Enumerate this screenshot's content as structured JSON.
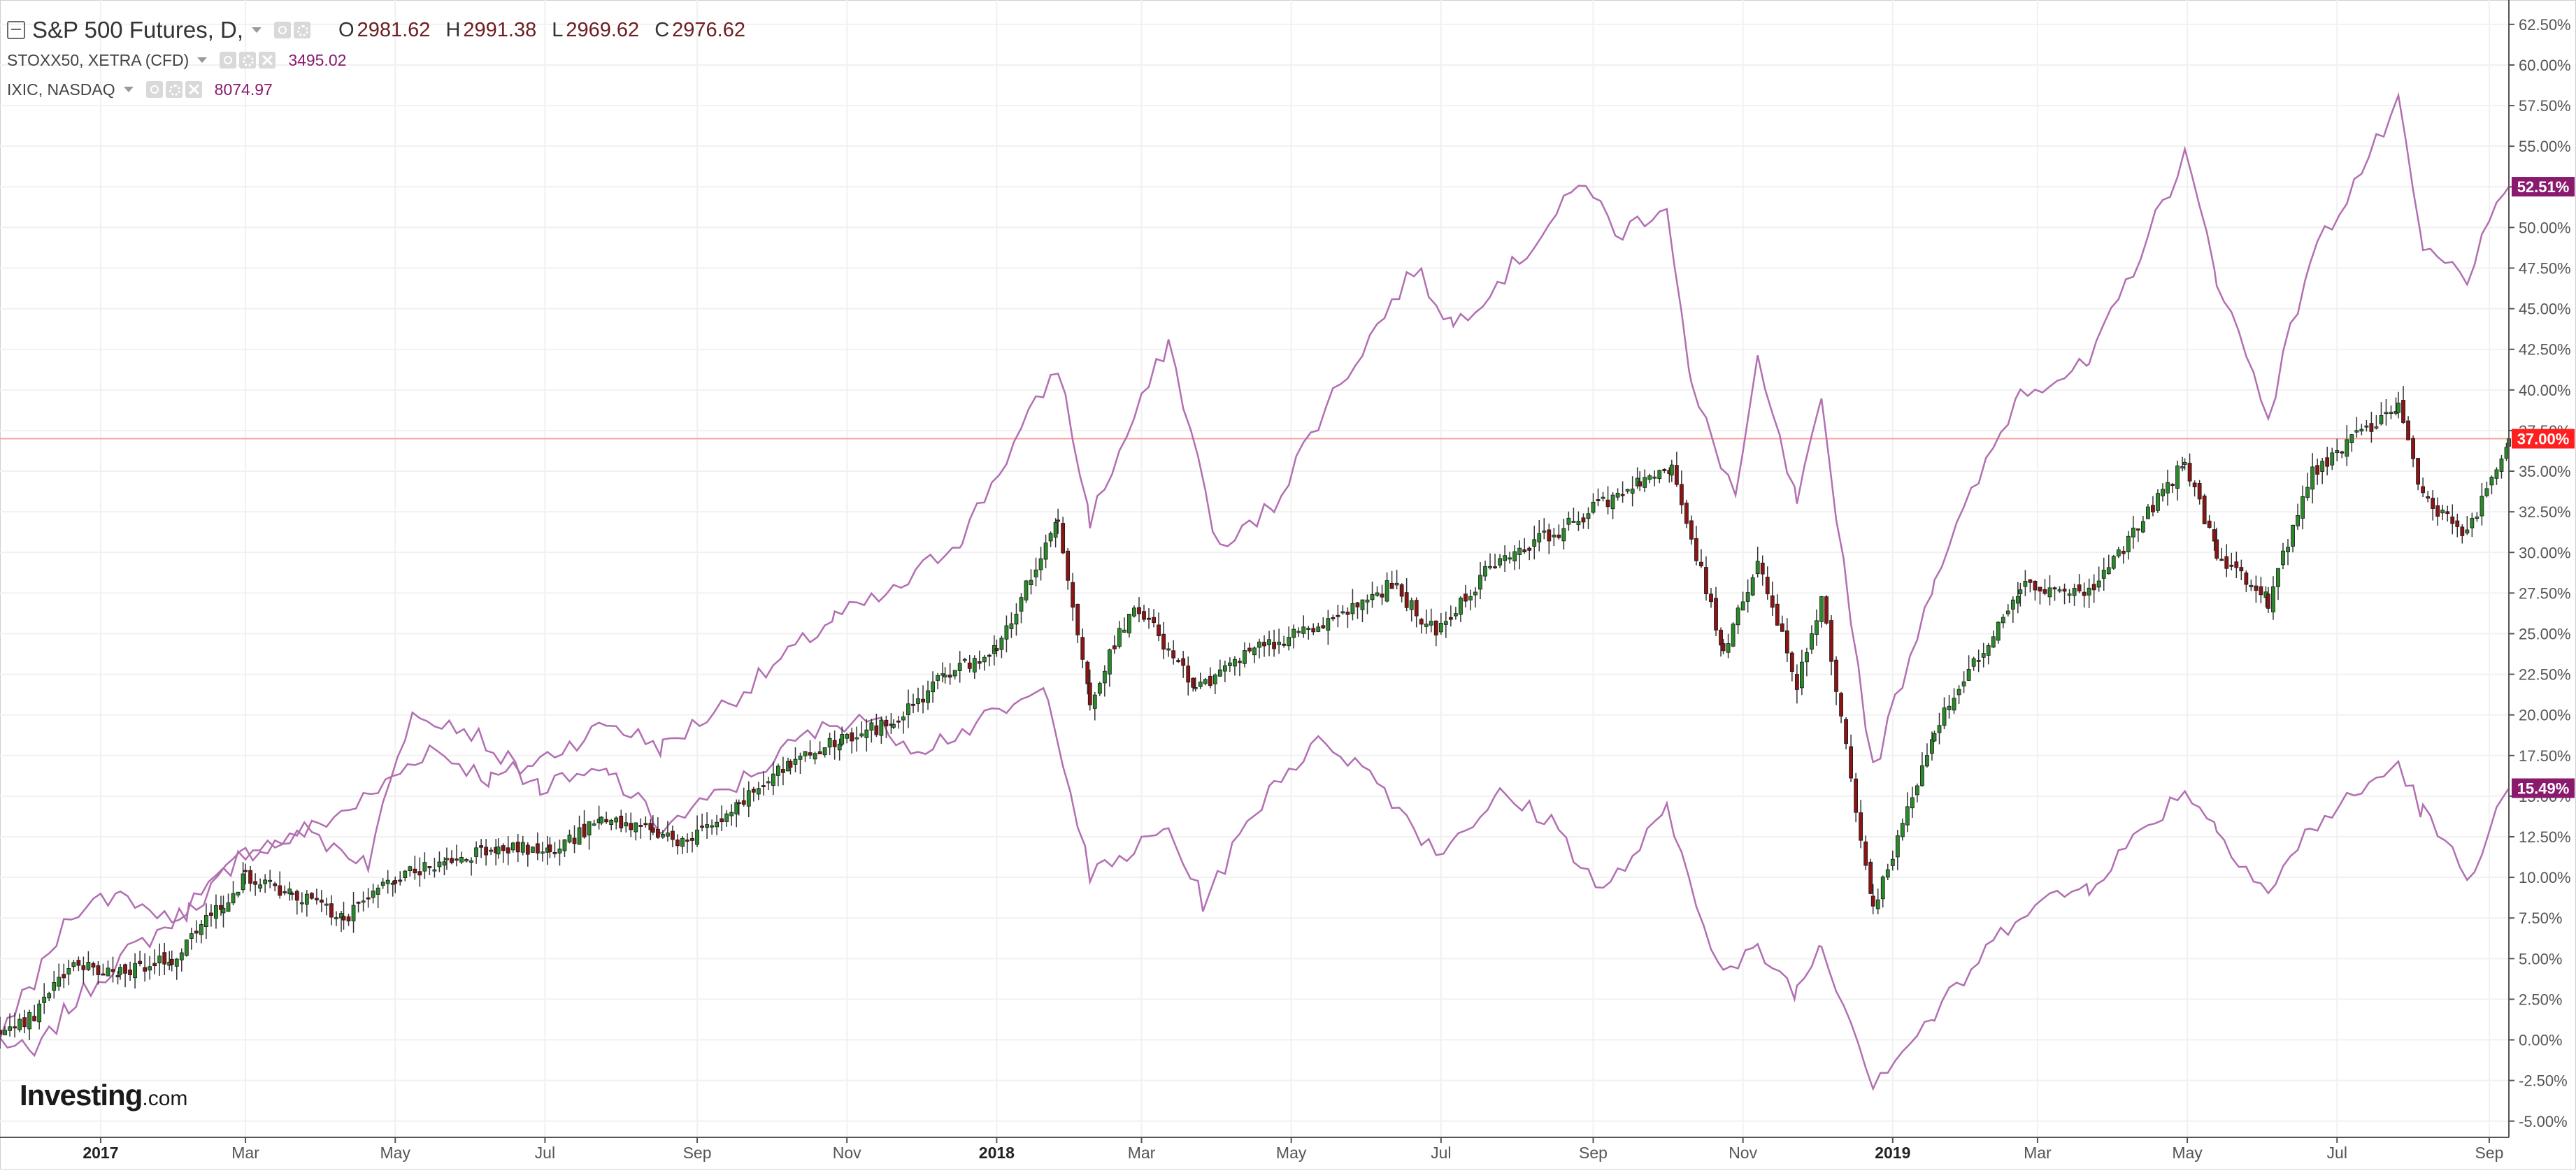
{
  "legend": {
    "main": {
      "title": "S&P 500 Futures, D,",
      "o_label": "O",
      "o": "2981.62",
      "h_label": "H",
      "h": "2991.38",
      "l_label": "L",
      "l": "2969.62",
      "c_label": "C",
      "c": "2976.62"
    },
    "overlays": [
      {
        "name": "STOXX50, XETRA (CFD)",
        "value": "3495.02"
      },
      {
        "name": "IXIC, NASDAQ",
        "value": "8074.97"
      }
    ]
  },
  "logo": {
    "main": "Investing",
    "domain": ".com"
  },
  "colors": {
    "up": "#2a8a2a",
    "down": "#8b1414",
    "overlay": "#b26fb2",
    "axis_text": "#555555",
    "ref_line": "#f2a7a0",
    "grid": "#f1f1f1"
  },
  "chart_data": {
    "type": "line",
    "x_axis": {
      "range": [
        "2016-11-21",
        "2019-09-09"
      ],
      "tick_labels": [
        {
          "date": "2017-01-01",
          "label": "2017",
          "bold": true
        },
        {
          "date": "2017-03-01",
          "label": "Mar"
        },
        {
          "date": "2017-05-01",
          "label": "May"
        },
        {
          "date": "2017-07-01",
          "label": "Jul"
        },
        {
          "date": "2017-09-01",
          "label": "Sep"
        },
        {
          "date": "2017-11-01",
          "label": "Nov"
        },
        {
          "date": "2018-01-01",
          "label": "2018",
          "bold": true
        },
        {
          "date": "2018-03-01",
          "label": "Mar"
        },
        {
          "date": "2018-05-01",
          "label": "May"
        },
        {
          "date": "2018-07-01",
          "label": "Jul"
        },
        {
          "date": "2018-09-01",
          "label": "Sep"
        },
        {
          "date": "2018-11-01",
          "label": "Nov"
        },
        {
          "date": "2019-01-01",
          "label": "2019",
          "bold": true
        },
        {
          "date": "2019-03-01",
          "label": "Mar"
        },
        {
          "date": "2019-05-01",
          "label": "May"
        },
        {
          "date": "2019-07-01",
          "label": "Jul"
        },
        {
          "date": "2019-09-01",
          "label": "Sep"
        }
      ]
    },
    "y_axis": {
      "unit": "%",
      "range": [
        -6.0,
        64.0
      ],
      "ticks": [
        -5.0,
        -2.5,
        0.0,
        2.5,
        5.0,
        7.5,
        10.0,
        12.5,
        15.0,
        17.5,
        20.0,
        22.5,
        25.0,
        27.5,
        30.0,
        32.5,
        35.0,
        37.5,
        40.0,
        42.5,
        45.0,
        47.5,
        50.0,
        52.5,
        55.0,
        57.5,
        60.0,
        62.5
      ],
      "tick_labels": [
        "-5.00%",
        "-2.50%",
        "0.00%",
        "2.50%",
        "5.00%",
        "7.50%",
        "10.00%",
        "12.50%",
        "15.00%",
        "17.50%",
        "20.00%",
        "22.50%",
        "25.00%",
        "27.50%",
        "30.00%",
        "32.50%",
        "35.00%",
        "37.50%",
        "40.00%",
        "42.50%",
        "45.00%",
        "47.50%",
        "50.00%",
        "52.50%",
        "55.00%",
        "57.50%",
        "60.00%",
        "62.50%"
      ]
    },
    "grid": true,
    "reference_line": 37.0,
    "last_value_badges": [
      {
        "series": "S&P 500 Futures",
        "text": "37.00%",
        "value": 37.0,
        "color": "#ff1f1f"
      },
      {
        "series": "IXIC, NASDAQ",
        "text": "52.51%",
        "value": 52.51,
        "color": "#8a1a6d"
      },
      {
        "series": "STOXX50, XETRA (CFD)",
        "text": "15.49%",
        "value": 15.49,
        "color": "#8a1a6d"
      }
    ],
    "series": [
      {
        "name": "S&P 500 Futures",
        "type": "candlestick",
        "points": [
          [
            "2016-11-21",
            0.0
          ],
          [
            "2016-12-05",
            1.5
          ],
          [
            "2016-12-19",
            4.5
          ],
          [
            "2017-01-09",
            4.2
          ],
          [
            "2017-01-30",
            5.0
          ],
          [
            "2017-02-20",
            8.5
          ],
          [
            "2017-03-01",
            10.0
          ],
          [
            "2017-03-20",
            9.0
          ],
          [
            "2017-04-10",
            7.5
          ],
          [
            "2017-05-01",
            10.0
          ],
          [
            "2017-05-22",
            11.0
          ],
          [
            "2017-06-12",
            12.0
          ],
          [
            "2017-07-03",
            11.5
          ],
          [
            "2017-07-24",
            13.5
          ],
          [
            "2017-08-14",
            13.0
          ],
          [
            "2017-08-28",
            12.0
          ],
          [
            "2017-09-18",
            14.5
          ],
          [
            "2017-10-09",
            17.0
          ],
          [
            "2017-10-30",
            18.5
          ],
          [
            "2017-11-20",
            19.5
          ],
          [
            "2017-12-11",
            22.5
          ],
          [
            "2018-01-01",
            24.0
          ],
          [
            "2018-01-26",
            32.0
          ],
          [
            "2018-02-08",
            21.0
          ],
          [
            "2018-02-26",
            27.0
          ],
          [
            "2018-03-23",
            21.5
          ],
          [
            "2018-04-16",
            24.0
          ],
          [
            "2018-05-14",
            25.5
          ],
          [
            "2018-06-11",
            28.0
          ],
          [
            "2018-06-29",
            25.0
          ],
          [
            "2018-07-23",
            29.5
          ],
          [
            "2018-08-20",
            31.5
          ],
          [
            "2018-09-20",
            34.5
          ],
          [
            "2018-10-03",
            35.0
          ],
          [
            "2018-10-24",
            24.0
          ],
          [
            "2018-11-07",
            29.5
          ],
          [
            "2018-11-23",
            22.0
          ],
          [
            "2018-12-03",
            27.0
          ],
          [
            "2018-12-24",
            8.0
          ],
          [
            "2019-01-18",
            19.0
          ],
          [
            "2019-02-22",
            28.0
          ],
          [
            "2019-03-22",
            27.5
          ],
          [
            "2019-04-30",
            35.5
          ],
          [
            "2019-05-13",
            30.0
          ],
          [
            "2019-06-03",
            27.0
          ],
          [
            "2019-06-21",
            35.0
          ],
          [
            "2019-07-26",
            39.0
          ],
          [
            "2019-08-05",
            33.5
          ],
          [
            "2019-08-23",
            31.0
          ],
          [
            "2019-09-09",
            37.0
          ]
        ]
      },
      {
        "name": "IXIC, NASDAQ",
        "type": "line",
        "points": [
          [
            "2016-11-21",
            0.0
          ],
          [
            "2016-12-05",
            -1.0
          ],
          [
            "2016-12-19",
            2.0
          ],
          [
            "2017-01-09",
            5.0
          ],
          [
            "2017-02-06",
            8.0
          ],
          [
            "2017-03-01",
            11.5
          ],
          [
            "2017-03-22",
            12.5
          ],
          [
            "2017-04-21",
            15.0
          ],
          [
            "2017-05-15",
            18.0
          ],
          [
            "2017-06-09",
            16.0
          ],
          [
            "2017-06-26",
            17.0
          ],
          [
            "2017-07-27",
            19.5
          ],
          [
            "2017-08-18",
            18.0
          ],
          [
            "2017-09-20",
            21.5
          ],
          [
            "2017-10-27",
            26.0
          ],
          [
            "2017-11-20",
            27.5
          ],
          [
            "2017-12-18",
            31.0
          ],
          [
            "2018-01-26",
            41.5
          ],
          [
            "2018-02-08",
            32.0
          ],
          [
            "2018-03-12",
            43.0
          ],
          [
            "2018-04-02",
            30.0
          ],
          [
            "2018-04-24",
            33.0
          ],
          [
            "2018-05-15",
            39.0
          ],
          [
            "2018-06-20",
            47.5
          ],
          [
            "2018-07-06",
            44.0
          ],
          [
            "2018-08-02",
            48.0
          ],
          [
            "2018-08-29",
            53.0
          ],
          [
            "2018-09-10",
            49.5
          ],
          [
            "2018-10-01",
            51.5
          ],
          [
            "2018-10-11",
            40.0
          ],
          [
            "2018-10-29",
            33.5
          ],
          [
            "2018-11-07",
            41.5
          ],
          [
            "2018-11-23",
            33.0
          ],
          [
            "2018-12-03",
            39.0
          ],
          [
            "2018-12-24",
            16.5
          ],
          [
            "2019-01-18",
            28.5
          ],
          [
            "2019-02-22",
            40.0
          ],
          [
            "2019-03-22",
            41.5
          ],
          [
            "2019-04-30",
            54.5
          ],
          [
            "2019-05-13",
            47.0
          ],
          [
            "2019-06-03",
            38.5
          ],
          [
            "2019-06-20",
            48.0
          ],
          [
            "2019-07-26",
            57.5
          ],
          [
            "2019-08-05",
            48.5
          ],
          [
            "2019-08-23",
            47.0
          ],
          [
            "2019-09-09",
            52.51
          ]
        ]
      },
      {
        "name": "STOXX50, XETRA (CFD)",
        "type": "line",
        "points": [
          [
            "2016-11-21",
            0.5
          ],
          [
            "2016-12-05",
            3.5
          ],
          [
            "2016-12-20",
            8.0
          ],
          [
            "2017-01-09",
            9.0
          ],
          [
            "2017-01-30",
            7.5
          ],
          [
            "2017-02-20",
            10.0
          ],
          [
            "2017-03-01",
            11.5
          ],
          [
            "2017-03-22",
            13.0
          ],
          [
            "2017-04-20",
            11.0
          ],
          [
            "2017-05-08",
            20.5
          ],
          [
            "2017-06-01",
            19.0
          ],
          [
            "2017-06-29",
            15.5
          ],
          [
            "2017-07-27",
            16.5
          ],
          [
            "2017-08-18",
            13.0
          ],
          [
            "2017-09-20",
            16.0
          ],
          [
            "2017-10-13",
            18.5
          ],
          [
            "2017-11-06",
            20.0
          ],
          [
            "2017-11-30",
            18.0
          ],
          [
            "2017-12-18",
            19.0
          ],
          [
            "2018-01-22",
            21.5
          ],
          [
            "2018-02-08",
            10.0
          ],
          [
            "2018-03-12",
            13.0
          ],
          [
            "2018-03-26",
            8.5
          ],
          [
            "2018-04-24",
            16.0
          ],
          [
            "2018-05-15",
            18.5
          ],
          [
            "2018-06-05",
            16.0
          ],
          [
            "2018-06-29",
            11.5
          ],
          [
            "2018-07-25",
            15.0
          ],
          [
            "2018-08-15",
            13.5
          ],
          [
            "2018-09-05",
            9.0
          ],
          [
            "2018-10-01",
            14.0
          ],
          [
            "2018-10-24",
            4.0
          ],
          [
            "2018-11-07",
            5.5
          ],
          [
            "2018-11-23",
            3.0
          ],
          [
            "2018-12-03",
            6.0
          ],
          [
            "2018-12-24",
            -2.5
          ],
          [
            "2019-01-18",
            1.5
          ],
          [
            "2019-02-22",
            8.0
          ],
          [
            "2019-03-22",
            9.5
          ],
          [
            "2019-04-30",
            15.5
          ],
          [
            "2019-05-13",
            13.0
          ],
          [
            "2019-06-03",
            9.0
          ],
          [
            "2019-06-20",
            13.0
          ],
          [
            "2019-07-26",
            17.0
          ],
          [
            "2019-08-05",
            14.0
          ],
          [
            "2019-08-23",
            10.0
          ],
          [
            "2019-09-09",
            15.49
          ]
        ]
      }
    ]
  }
}
